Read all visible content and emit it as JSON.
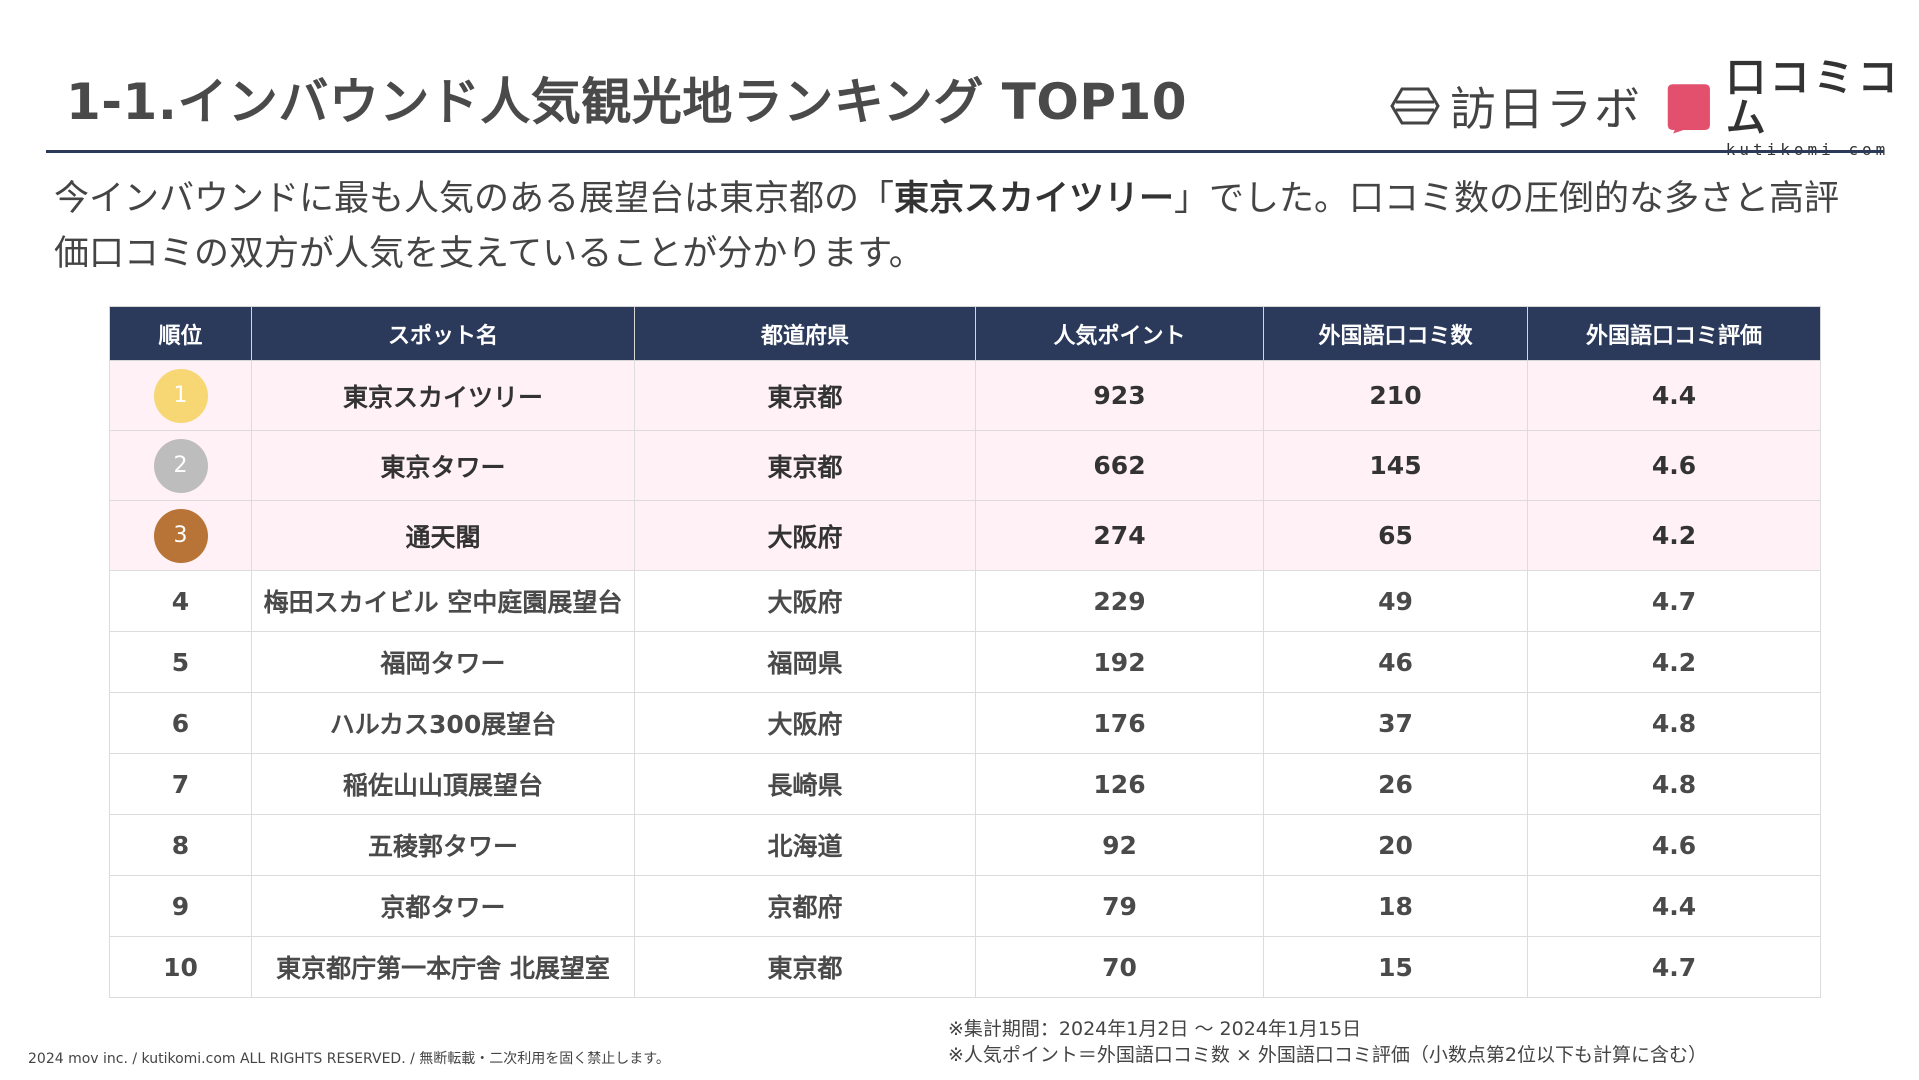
{
  "title": "1-1.インバウンド人気観光地ランキング TOP10",
  "logos": {
    "houjin_text": "訪日ラボ",
    "kuchikomi_jp": "口コミコム",
    "kuchikomi_en": "kutikomi com"
  },
  "lead": {
    "before": "今インバウンドに最も人気のある展望台は東京都の「",
    "highlight": "東京スカイツリー",
    "after": "」でした。口コミ数の圧倒的な多さと高評価口コミの双方が人気を支えていることが分かります。"
  },
  "table": {
    "headers": [
      "順位",
      "スポット名",
      "都道府県",
      "人気ポイント",
      "外国語口コミ数",
      "外国語口コミ評価"
    ],
    "rows": [
      {
        "rank": "1",
        "spot": "東京スカイツリー",
        "pref": "東京都",
        "points": "923",
        "reviews": "210",
        "rating": "4.4"
      },
      {
        "rank": "2",
        "spot": "東京タワー",
        "pref": "東京都",
        "points": "662",
        "reviews": "145",
        "rating": "4.6"
      },
      {
        "rank": "3",
        "spot": "通天閣",
        "pref": "大阪府",
        "points": "274",
        "reviews": "65",
        "rating": "4.2"
      },
      {
        "rank": "4",
        "spot": "梅田スカイビル 空中庭園展望台",
        "pref": "大阪府",
        "points": "229",
        "reviews": "49",
        "rating": "4.7"
      },
      {
        "rank": "5",
        "spot": "福岡タワー",
        "pref": "福岡県",
        "points": "192",
        "reviews": "46",
        "rating": "4.2"
      },
      {
        "rank": "6",
        "spot": "ハルカス300展望台",
        "pref": "大阪府",
        "points": "176",
        "reviews": "37",
        "rating": "4.8"
      },
      {
        "rank": "7",
        "spot": "稲佐山山頂展望台",
        "pref": "長崎県",
        "points": "126",
        "reviews": "26",
        "rating": "4.8"
      },
      {
        "rank": "8",
        "spot": "五稜郭タワー",
        "pref": "北海道",
        "points": "92",
        "reviews": "20",
        "rating": "4.6"
      },
      {
        "rank": "9",
        "spot": "京都タワー",
        "pref": "京都府",
        "points": "79",
        "reviews": "18",
        "rating": "4.4"
      },
      {
        "rank": "10",
        "spot": "東京都庁第一本庁舎 北展望室",
        "pref": "東京都",
        "points": "70",
        "reviews": "15",
        "rating": "4.7"
      }
    ]
  },
  "medal_colors": [
    "#f7d774",
    "#bdbdbd",
    "#b87436"
  ],
  "colors": {
    "header_bg": "#2b3a5b",
    "top3_row_bg": "#fff1f5",
    "accent_pink": "#e2506d"
  },
  "footer": {
    "copyright": "2024 mov inc. / kutikomi.com ALL RIGHTS RESERVED. / 無断転載・二次利用を固く禁止します。",
    "note1": "※集計期間：2024年1月2日 〜 2024年1月15日",
    "note2": "※人気ポイント＝外国語口コミ数 × 外国語口コミ評価（小数点第2位以下も計算に含む）"
  }
}
